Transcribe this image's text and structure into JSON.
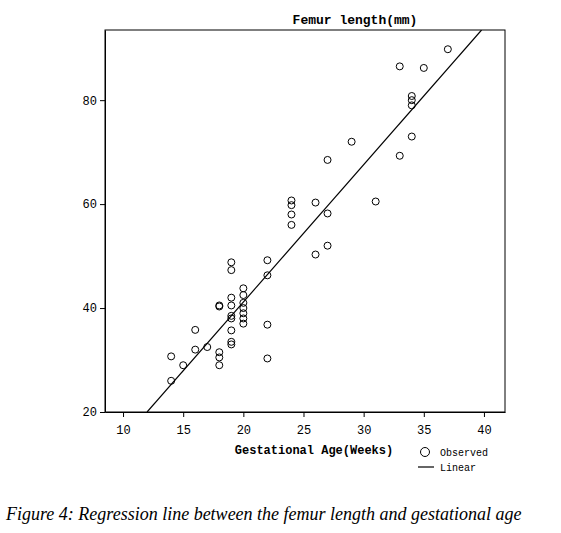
{
  "chart_data": {
    "type": "scatter",
    "title": "Femur length(mm)",
    "x_label": "Gestational Age(Weeks)",
    "caption": "Figure 4: Regression line between the femur length and gestational age",
    "xlim": [
      8.5,
      41.75
    ],
    "ylim": [
      20,
      93.5
    ],
    "xticks": [
      10,
      15,
      20,
      25,
      30,
      35,
      40
    ],
    "yticks": [
      20,
      40,
      60,
      80
    ],
    "grid": false,
    "legend": "lower right",
    "series": [
      {
        "name": "Observed",
        "type": "scatter",
        "marker": "circle",
        "color": "#000000",
        "x": [
          14,
          14,
          15,
          16,
          16,
          17,
          18,
          18,
          18,
          18,
          18,
          19,
          19,
          19,
          19,
          19,
          19,
          19,
          19,
          19,
          20,
          20,
          20,
          20,
          20,
          20,
          20,
          22,
          22,
          22,
          22,
          24,
          24,
          24,
          24,
          26,
          26,
          27,
          27,
          27,
          29,
          31,
          33,
          33,
          34,
          34,
          34,
          34,
          35,
          37
        ],
        "values": [
          30.7,
          26,
          29,
          35.8,
          32,
          32.5,
          40.5,
          40.3,
          31.5,
          30.5,
          29,
          48.8,
          47.3,
          42,
          40.5,
          38.5,
          38,
          35.7,
          33.5,
          33,
          43.8,
          42.5,
          41,
          40,
          39,
          38,
          37,
          49.2,
          46.3,
          36.8,
          30.3,
          60.7,
          59.8,
          58,
          56,
          60.3,
          50.3,
          68.5,
          58.2,
          52,
          72,
          60.5,
          86.5,
          69.3,
          80.8,
          80,
          79,
          73,
          86.2,
          89.8
        ]
      },
      {
        "name": "Linear",
        "type": "line",
        "line_style": "solid",
        "color": "#000000",
        "x": [
          12,
          39.8
        ],
        "values": [
          20,
          93.5
        ]
      }
    ]
  }
}
